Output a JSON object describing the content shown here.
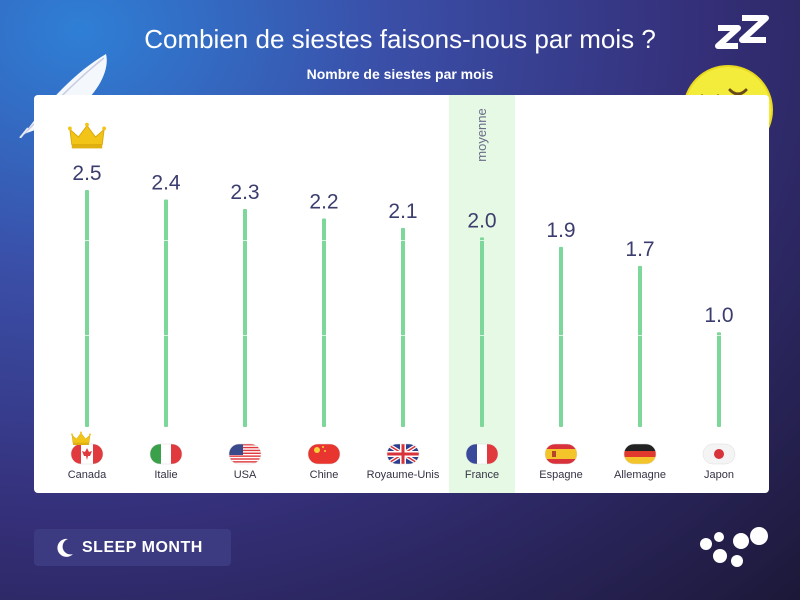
{
  "header": {
    "title": "Combien de siestes faisons-nous par mois ?",
    "subtitle": "Nombre de siestes par mois"
  },
  "chart_data": {
    "type": "bar",
    "title": "Combien de siestes faisons-nous par mois ?",
    "subtitle": "Nombre de siestes par mois",
    "categories": [
      "Canada",
      "Italie",
      "USA",
      "Chine",
      "Royaume-Unis",
      "France",
      "Espagne",
      "Allemagne",
      "Japon"
    ],
    "values": [
      2.5,
      2.4,
      2.3,
      2.2,
      2.1,
      2.0,
      1.9,
      1.7,
      1.0
    ],
    "value_labels": [
      "2.5",
      "2.4",
      "2.3",
      "2.2",
      "2.1",
      "2.0",
      "1.9",
      "1.7",
      "1.0"
    ],
    "ylim": [
      0,
      2.5
    ],
    "highlight": {
      "category": "France",
      "label": "moyenne"
    },
    "winner_icon": "crown-icon",
    "bar_color": "#7dd69a",
    "highlight_color": "#e6f9e4",
    "label_color": "#3b3d6e"
  },
  "footer": {
    "badge_label": "SLEEP MONTH",
    "badge_icon": "moon-icon",
    "logo_icon": "dots-logo-icon"
  },
  "decorations": {
    "feather_icon": "feather-icon",
    "emoji_icon": "sleeping-face-icon"
  }
}
